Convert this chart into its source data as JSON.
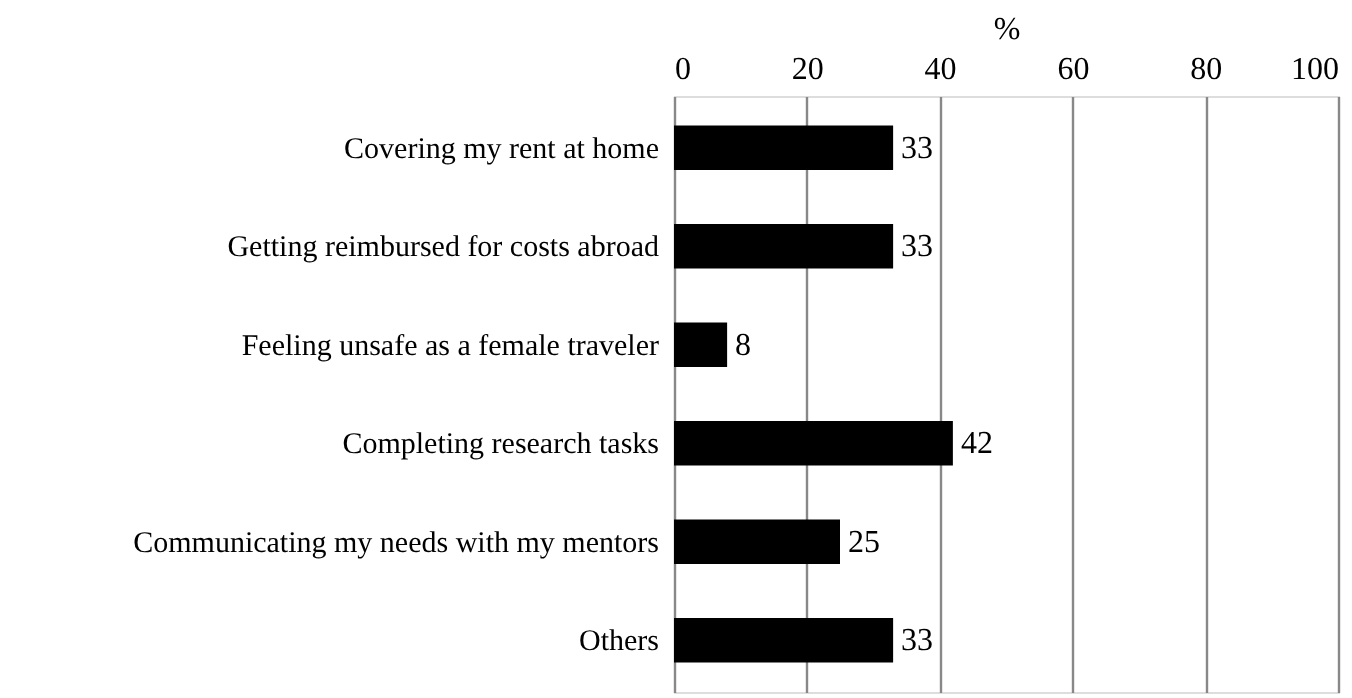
{
  "chart_data": {
    "type": "bar",
    "orientation": "horizontal",
    "xlabel": "%",
    "categories": [
      "Covering my rent at home",
      "Getting reimbursed for costs abroad",
      "Feeling unsafe as a female traveler",
      "Completing research tasks",
      "Communicating my needs with my mentors",
      "Others"
    ],
    "values": [
      33,
      33,
      8,
      42,
      25,
      33
    ],
    "color": "#000000",
    "xlim": [
      0,
      100
    ],
    "xticks": [
      0,
      20,
      40,
      60,
      80,
      100
    ],
    "grid": "x",
    "data_labels": true
  }
}
